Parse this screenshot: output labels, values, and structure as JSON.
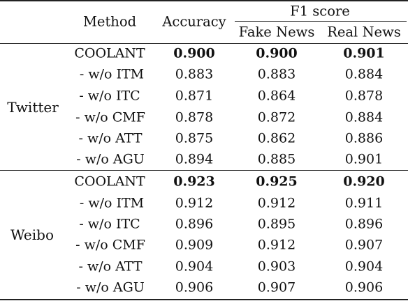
{
  "table": {
    "headers": {
      "method": "Method",
      "accuracy": "Accuracy",
      "f1_group": "F1 score",
      "fake": "Fake News",
      "real": "Real News"
    },
    "groups": [
      {
        "dataset": "Twitter",
        "rows": [
          {
            "method": "COOLANT",
            "accuracy": "0.900",
            "fake": "0.900",
            "real": "0.901",
            "bold": true
          },
          {
            "method": "- w/o ITM",
            "accuracy": "0.883",
            "fake": "0.883",
            "real": "0.884",
            "bold": false
          },
          {
            "method": "- w/o ITC",
            "accuracy": "0.871",
            "fake": "0.864",
            "real": "0.878",
            "bold": false
          },
          {
            "method": "- w/o CMF",
            "accuracy": "0.878",
            "fake": "0.872",
            "real": "0.884",
            "bold": false
          },
          {
            "method": "- w/o ATT",
            "accuracy": "0.875",
            "fake": "0.862",
            "real": "0.886",
            "bold": false
          },
          {
            "method": "- w/o AGU",
            "accuracy": "0.894",
            "fake": "0.885",
            "real": "0.901",
            "bold": false
          }
        ]
      },
      {
        "dataset": "Weibo",
        "rows": [
          {
            "method": "COOLANT",
            "accuracy": "0.923",
            "fake": "0.925",
            "real": "0.920",
            "bold": true
          },
          {
            "method": "- w/o ITM",
            "accuracy": "0.912",
            "fake": "0.912",
            "real": "0.911",
            "bold": false
          },
          {
            "method": "- w/o ITC",
            "accuracy": "0.896",
            "fake": "0.895",
            "real": "0.896",
            "bold": false
          },
          {
            "method": "- w/o CMF",
            "accuracy": "0.909",
            "fake": "0.912",
            "real": "0.907",
            "bold": false
          },
          {
            "method": "- w/o ATT",
            "accuracy": "0.904",
            "fake": "0.903",
            "real": "0.904",
            "bold": false
          },
          {
            "method": "- w/o AGU",
            "accuracy": "0.906",
            "fake": "0.907",
            "real": "0.906",
            "bold": false
          }
        ]
      }
    ]
  }
}
